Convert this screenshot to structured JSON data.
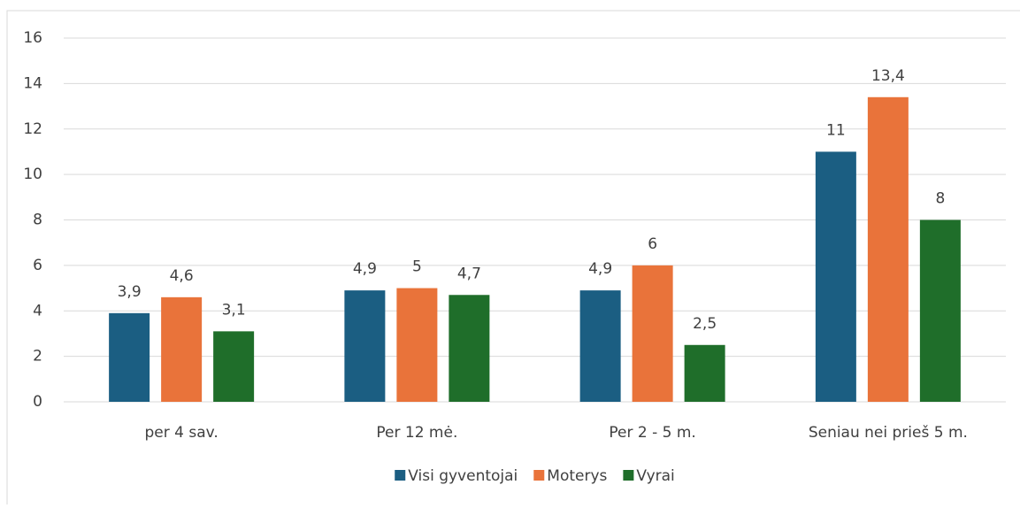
{
  "chart_data": {
    "type": "bar",
    "categories": [
      "per 4 sav.",
      "Per 12 mė.",
      "Per 2 - 5 m.",
      "Seniau nei prieš 5 m."
    ],
    "series": [
      {
        "name": "Visi gyventojai",
        "color": "#1b5e82",
        "values": [
          3.9,
          4.9,
          4.9,
          11
        ],
        "value_labels": [
          "3,9",
          "4,9",
          "4,9",
          "11"
        ]
      },
      {
        "name": "Moterys",
        "color": "#e9733a",
        "values": [
          4.6,
          5,
          6,
          13.4
        ],
        "value_labels": [
          "4,6",
          "5",
          "6",
          "13,4"
        ]
      },
      {
        "name": "Vyrai",
        "color": "#1f6e2a",
        "values": [
          3.1,
          4.7,
          2.5,
          8
        ],
        "value_labels": [
          "3,1",
          "4,7",
          "2,5",
          "8"
        ]
      }
    ],
    "ylim": [
      0,
      16
    ],
    "yticks": [
      0,
      2,
      4,
      6,
      8,
      10,
      12,
      14,
      16
    ],
    "grid": true,
    "legend": "bottom"
  }
}
